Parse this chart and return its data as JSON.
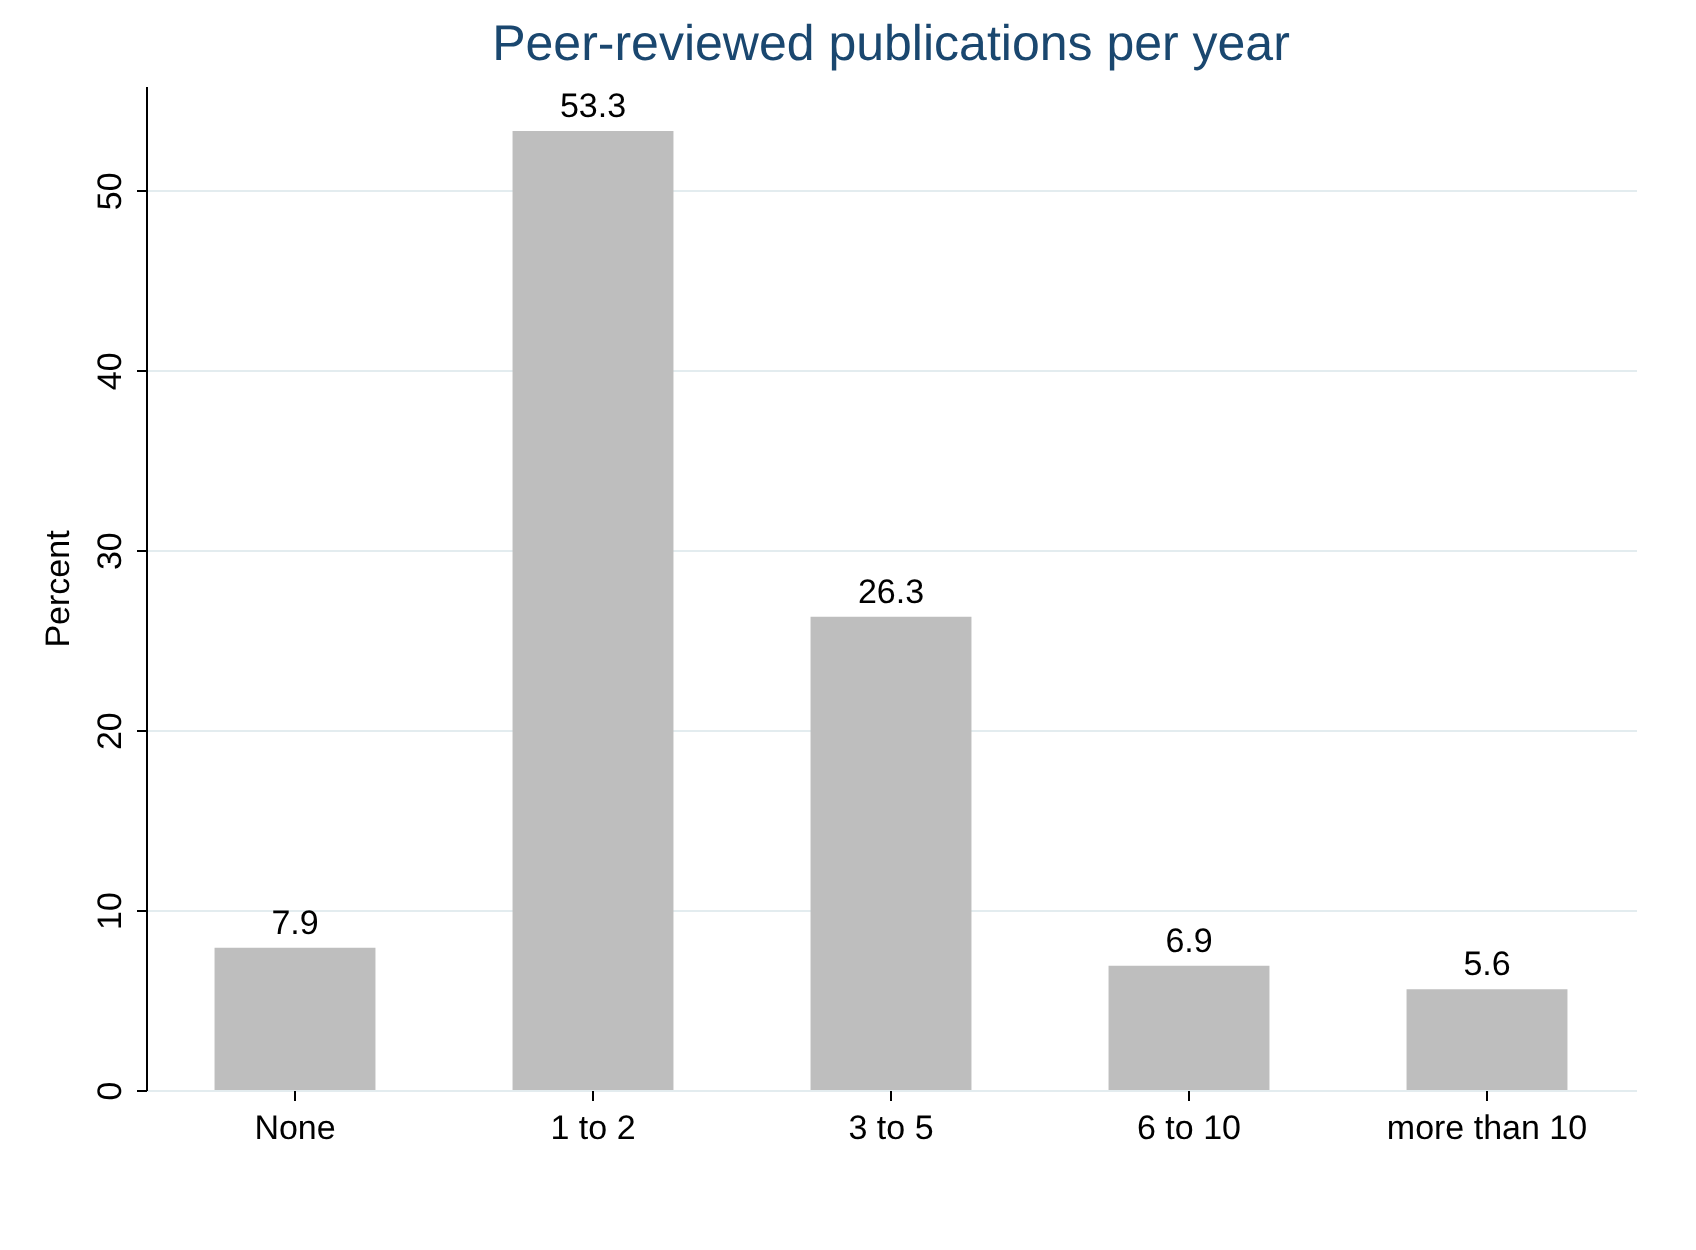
{
  "chart_data": {
    "type": "bar",
    "title": "Peer-reviewed publications per year",
    "ylabel": "Percent",
    "categories": [
      "None",
      "1 to 2",
      "3 to 5",
      "6 to 10",
      "more than 10"
    ],
    "values": [
      7.9,
      53.3,
      26.3,
      6.9,
      5.6
    ],
    "color": "#bebebe",
    "ylim": [
      0,
      55.8
    ],
    "yticks": [
      0,
      10,
      20,
      30,
      40,
      50
    ],
    "grid": "y",
    "data_labels": true
  }
}
